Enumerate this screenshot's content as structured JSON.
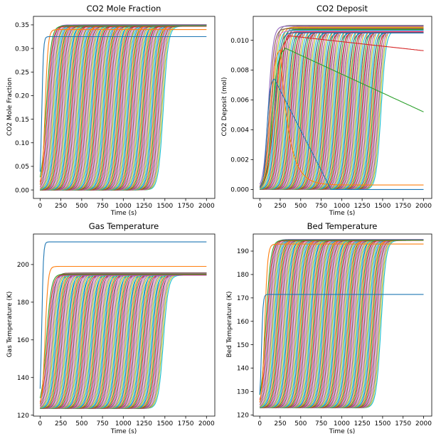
{
  "figure": {
    "background": "#ffffff"
  },
  "curve_color_cycle": [
    "#1f77b4",
    "#ff7f0e",
    "#2ca02c",
    "#d62728",
    "#9467bd",
    "#8c564b",
    "#e377c2",
    "#7f7f7f",
    "#bcbd22",
    "#17becf"
  ],
  "chart_data": [
    {
      "type": "line",
      "title": "CO2 Mole Fraction",
      "xlabel": "Time (s)",
      "ylabel": "CO2 Mole Fraction",
      "xlim": [
        -80,
        2100
      ],
      "ylim": [
        -0.018,
        0.368
      ],
      "xticks": [
        0,
        250,
        500,
        750,
        1000,
        1250,
        1500,
        1750,
        2000
      ],
      "yticks": [
        0.0,
        0.05,
        0.1,
        0.15,
        0.2,
        0.25,
        0.3,
        0.35
      ],
      "ytick_labels": [
        "0.00",
        "0.05",
        "0.10",
        "0.15",
        "0.20",
        "0.25",
        "0.30",
        "0.35"
      ],
      "grid": false,
      "legend": "none",
      "series_summary": {
        "count": 100,
        "x_range": [
          0,
          2000
        ],
        "description": "sigmoidal breakthrough curves, one per bed location",
        "start_value": 0.0,
        "plateau_value_typical": 0.35,
        "first_curve_plateau": 0.325,
        "second_curve_plateau": 0.34,
        "midpoint_time_first_curve": 20,
        "midpoint_time_last_curve": 1500
      }
    },
    {
      "type": "line",
      "title": "CO2 Deposit",
      "xlabel": "Time (s)",
      "ylabel": "CO2 Deposit (mol)",
      "xlim": [
        -80,
        2100
      ],
      "ylim": [
        -0.0006,
        0.0116
      ],
      "xticks": [
        0,
        250,
        500,
        750,
        1000,
        1250,
        1500,
        1750,
        2000
      ],
      "yticks": [
        0.0,
        0.002,
        0.004,
        0.006,
        0.008,
        0.01
      ],
      "ytick_labels": [
        "0.000",
        "0.002",
        "0.004",
        "0.006",
        "0.008",
        "0.010"
      ],
      "grid": false,
      "legend": "none",
      "series_summary": {
        "count": 100,
        "x_range": [
          0,
          2000
        ],
        "description": "sigmoidal deposit curves; first few curves peak then decay",
        "start_value": 0.0,
        "plateau_value_range": [
          0.0105,
          0.011
        ],
        "decaying_curves": [
          {
            "peak": 0.0075,
            "peak_time": 170,
            "end_value": 0.0
          },
          {
            "peak": 0.0095,
            "peak_time": 250,
            "end_value": 0.0003
          },
          {
            "peak": 0.0095,
            "peak_time": 300,
            "end_value": 0.0052
          },
          {
            "peak": 0.0103,
            "peak_time": 350,
            "end_value": 0.0093
          }
        ]
      }
    },
    {
      "type": "line",
      "title": "Gas Temperature",
      "xlabel": "Time (s)",
      "ylabel": "Gas Temperature (K)",
      "xlim": [
        -80,
        2100
      ],
      "ylim": [
        119.5,
        216.2
      ],
      "xticks": [
        0,
        250,
        500,
        750,
        1000,
        1250,
        1500,
        1750,
        2000
      ],
      "yticks": [
        120,
        140,
        160,
        180,
        200
      ],
      "ytick_labels": [
        "120",
        "140",
        "160",
        "180",
        "200"
      ],
      "grid": false,
      "legend": "none",
      "series_summary": {
        "count": 100,
        "x_range": [
          0,
          2000
        ],
        "description": "sigmoidal temperature rise curves",
        "start_value": 123.5,
        "plateau_value_typical": 195.5,
        "first_curve_plateau": 212,
        "second_curve_plateau": 199
      }
    },
    {
      "type": "line",
      "title": "Bed Temperature",
      "xlabel": "Time (s)",
      "ylabel": "Bed Temperature (K)",
      "xlim": [
        -80,
        2100
      ],
      "ylim": [
        119.5,
        197.3
      ],
      "xticks": [
        0,
        250,
        500,
        750,
        1000,
        1250,
        1500,
        1750,
        2000
      ],
      "yticks": [
        120,
        130,
        140,
        150,
        160,
        170,
        180,
        190
      ],
      "ytick_labels": [
        "120",
        "130",
        "140",
        "150",
        "160",
        "170",
        "180",
        "190"
      ],
      "grid": false,
      "legend": "none",
      "series_summary": {
        "count": 100,
        "x_range": [
          0,
          2000
        ],
        "description": "sigmoidal temperature rise curves",
        "start_value": 123,
        "plateau_value_typical": 195,
        "first_curve_plateau": 171.5,
        "second_curve_plateau": 193
      }
    }
  ]
}
